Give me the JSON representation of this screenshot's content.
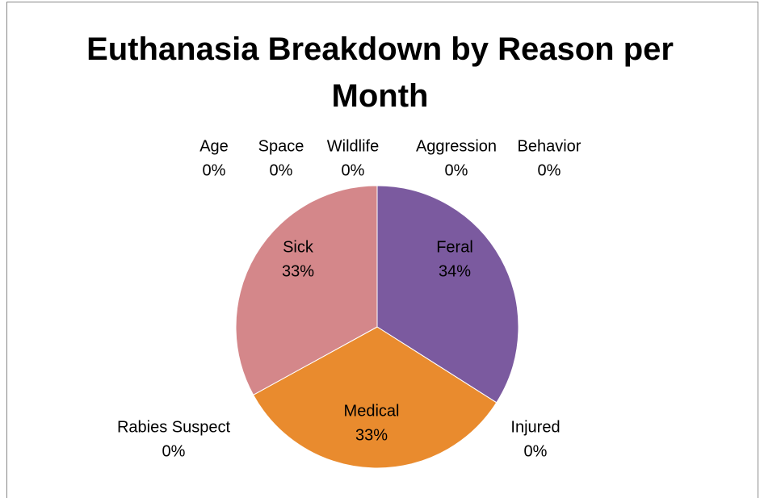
{
  "chart_data": {
    "type": "pie",
    "title": "Euthanasia Breakdown by Reason per Month",
    "categories": [
      "Feral",
      "Injured",
      "Medical",
      "Rabies Suspect",
      "Sick",
      "Age",
      "Space",
      "Wildlife",
      "Aggression",
      "Behavior"
    ],
    "values": [
      34,
      0,
      33,
      0,
      33,
      0,
      0,
      0,
      0,
      0
    ],
    "value_labels": [
      "34%",
      "0%",
      "33%",
      "0%",
      "33%",
      "0%",
      "0%",
      "0%",
      "0%",
      "0%"
    ],
    "colors": [
      "#7b5a9f",
      "#4aacc6",
      "#e98b2e",
      "#9bbb59",
      "#d4878a",
      "#8064a2",
      "#4bacc6",
      "#f79646",
      "#c0504d",
      "#4f81bd"
    ]
  }
}
